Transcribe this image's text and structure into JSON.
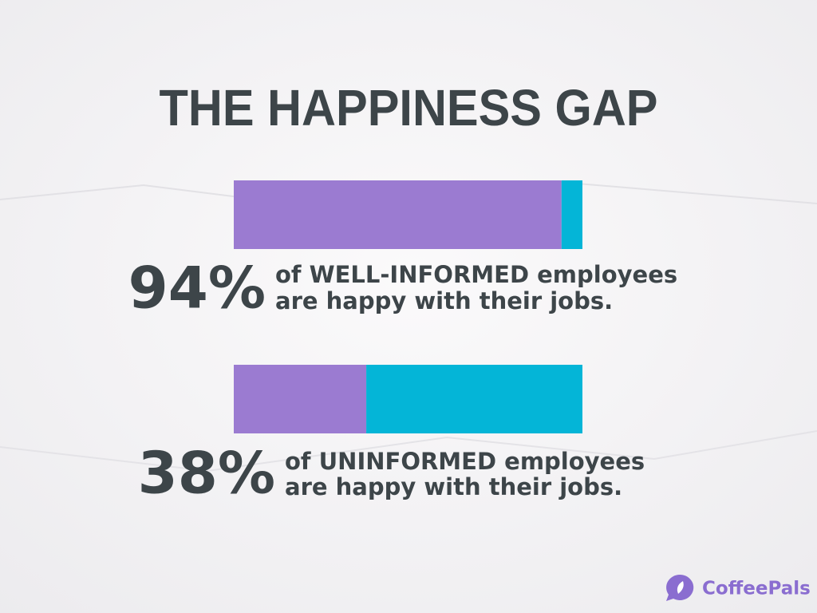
{
  "chart_data": {
    "type": "stacked-bar",
    "title": "THE HAPPINESS GAP",
    "xlim": [
      0,
      100
    ],
    "series": [
      {
        "color": "#9b7bd1",
        "values": [
          94,
          38
        ],
        "value_labels": [
          "94%",
          "38%"
        ]
      },
      {
        "color": "#04b5d7",
        "values": [
          6,
          62
        ]
      }
    ],
    "descriptions": [
      [
        "of WELL-INFORMED employees",
        "are happy with their jobs."
      ],
      [
        "of UNINFORMED employees",
        "are happy with their jobs."
      ]
    ]
  },
  "brand": "CoffeePals"
}
